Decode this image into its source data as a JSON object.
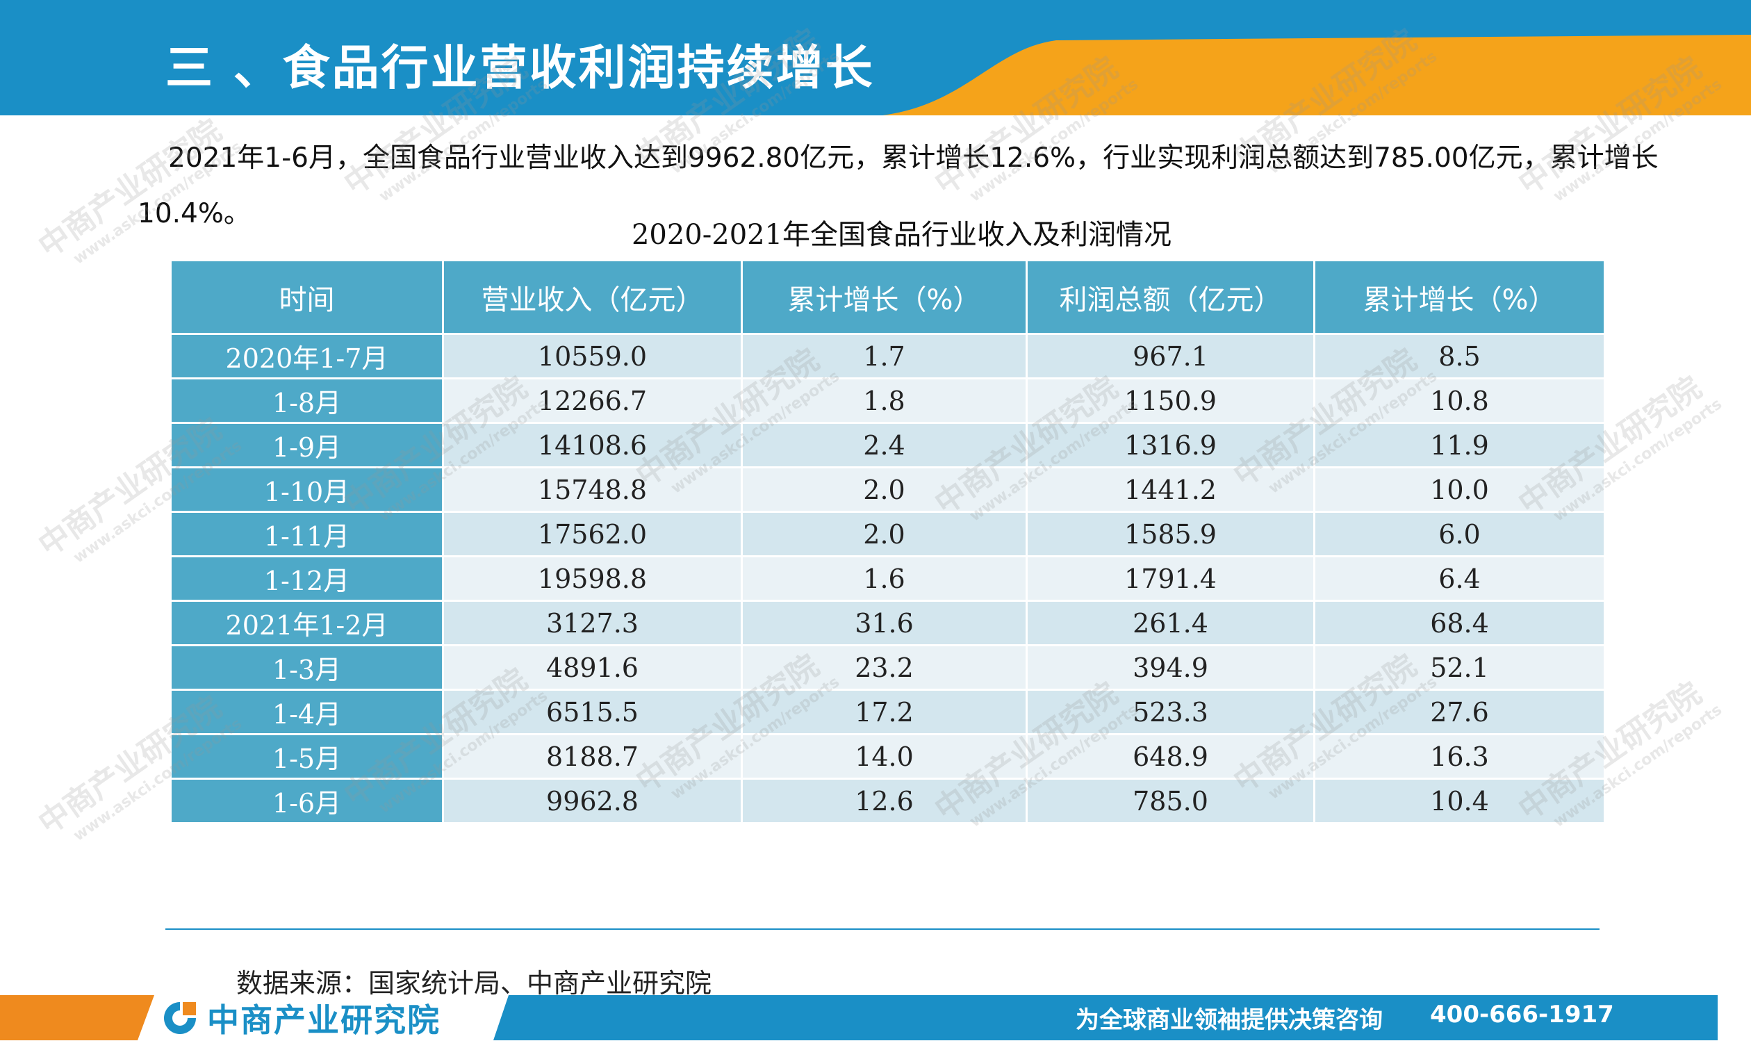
{
  "header": {
    "title": "三 、食品行业营收利润持续增长",
    "accent_color": "#f5a31a",
    "brand_color": "#1a8fc6"
  },
  "intro": {
    "paragraph": "2021年1-6月，全国食品行业营业收入达到9962.80亿元，累计增长12.6%，行业实现利润总额达到785.00亿元，累计增长10.4%。"
  },
  "table": {
    "title": "2020-2021年全国食品行业收入及利润情况",
    "headers": [
      "时间",
      "营业收入（亿元）",
      "累计增长（%）",
      "利润总额（亿元）",
      "累计增长（%）"
    ],
    "rows": [
      [
        "2020年1-7月",
        "10559.0",
        "1.7",
        "967.1",
        "8.5"
      ],
      [
        "1-8月",
        "12266.7",
        "1.8",
        "1150.9",
        "10.8"
      ],
      [
        "1-9月",
        "14108.6",
        "2.4",
        "1316.9",
        "11.9"
      ],
      [
        "1-10月",
        "15748.8",
        "2.0",
        "1441.2",
        "10.0"
      ],
      [
        "1-11月",
        "17562.0",
        "2.0",
        "1585.9",
        "6.0"
      ],
      [
        "1-12月",
        "19598.8",
        "1.6",
        "1791.4",
        "6.4"
      ],
      [
        "2021年1-2月",
        "3127.3",
        "31.6",
        "261.4",
        "68.4"
      ],
      [
        "1-3月",
        "4891.6",
        "23.2",
        "394.9",
        "52.1"
      ],
      [
        "1-4月",
        "6515.5",
        "17.2",
        "523.3",
        "27.6"
      ],
      [
        "1-5月",
        "8188.7",
        "14.0",
        "648.9",
        "16.3"
      ],
      [
        "1-6月",
        "9962.8",
        "12.6",
        "785.0",
        "10.4"
      ]
    ]
  },
  "footer": {
    "source": "数据来源：国家统计局、中商产业研究院",
    "logo_text": "中商产业研究院",
    "slogan": "为全球商业领袖提供决策咨询",
    "phone": "400-666-1917"
  },
  "watermark": {
    "main": "中商产业研究院",
    "sub": "www.askci.com/reports"
  }
}
